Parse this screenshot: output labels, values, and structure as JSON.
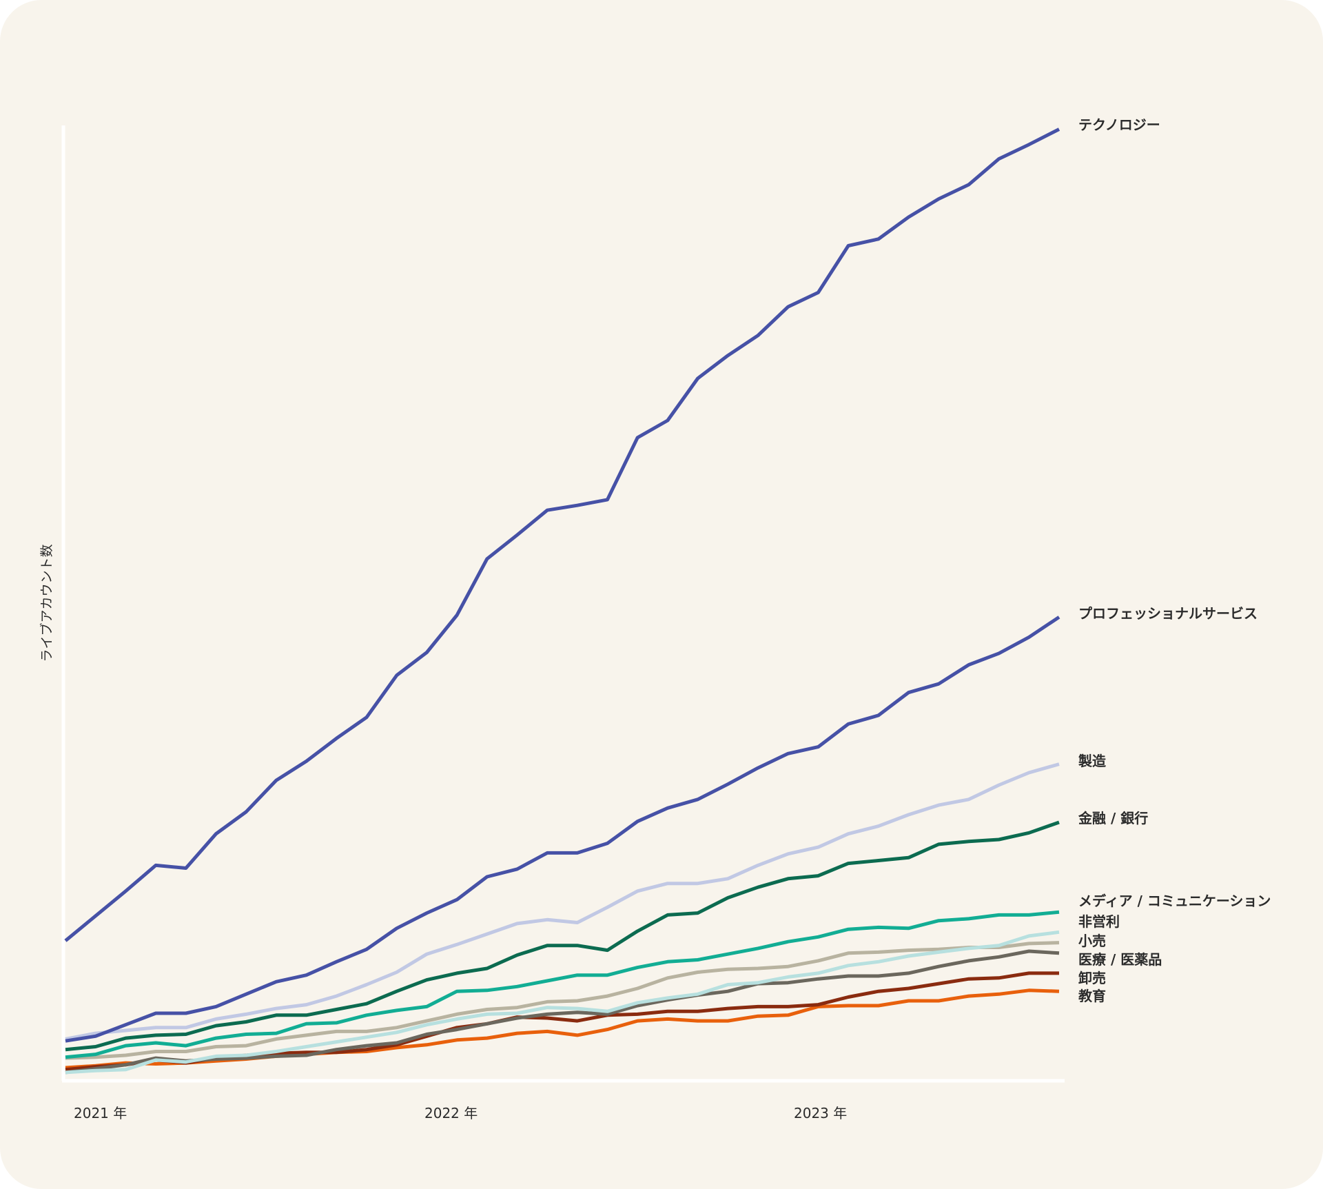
{
  "chart_data": {
    "type": "line",
    "title": "",
    "xlabel": "",
    "ylabel": "ライブアカウント数",
    "x_start": "2021-01",
    "x_frequency": "monthly",
    "x_ticks": [
      "2021 年",
      "2022 年",
      "2023 年"
    ],
    "y_scale_note": "relative (no y tick labels shown)",
    "ylim": [
      0,
      100
    ],
    "grid": false,
    "legend": "direct labels at line ends (right)",
    "series": [
      {
        "name": "テクノロジー",
        "color": "#4651a6",
        "values": [
          14.6,
          17.2,
          19.8,
          22.5,
          22.2,
          25.8,
          28.1,
          31.4,
          33.4,
          35.8,
          38.0,
          42.4,
          44.8,
          48.7,
          54.6,
          57.1,
          59.7,
          60.2,
          60.8,
          67.3,
          69.1,
          73.5,
          75.9,
          78.0,
          81.0,
          82.5,
          87.4,
          88.1,
          90.4,
          92.3,
          93.8,
          96.5,
          98.0,
          99.6
        ]
      },
      {
        "name": "プロフェッショナルサービス",
        "color": "#4651a6",
        "values": [
          4.1,
          4.6,
          5.8,
          7.0,
          7.0,
          7.7,
          9.0,
          10.3,
          11.0,
          12.4,
          13.7,
          15.9,
          17.5,
          18.9,
          21.3,
          22.1,
          23.8,
          23.8,
          24.8,
          27.1,
          28.5,
          29.4,
          31.0,
          32.7,
          34.2,
          34.9,
          37.3,
          38.2,
          40.6,
          41.5,
          43.5,
          44.7,
          46.4,
          48.5
        ]
      },
      {
        "name": "製造",
        "color": "#c1c8e4",
        "values": [
          4.3,
          4.9,
          5.2,
          5.5,
          5.5,
          6.4,
          6.9,
          7.5,
          7.9,
          8.8,
          10.0,
          11.3,
          13.2,
          14.2,
          15.3,
          16.4,
          16.8,
          16.5,
          18.1,
          19.8,
          20.6,
          20.6,
          21.1,
          22.5,
          23.7,
          24.4,
          25.8,
          26.6,
          27.8,
          28.8,
          29.4,
          30.9,
          32.2,
          33.1
        ]
      },
      {
        "name": "金融 / 銀行",
        "color": "#0c6b50",
        "values": [
          3.2,
          3.5,
          4.4,
          4.7,
          4.8,
          5.7,
          6.1,
          6.8,
          6.8,
          7.4,
          8.0,
          9.3,
          10.5,
          11.2,
          11.7,
          13.1,
          14.1,
          14.1,
          13.6,
          15.6,
          17.3,
          17.5,
          19.1,
          20.2,
          21.1,
          21.4,
          22.7,
          23.0,
          23.3,
          24.7,
          25.0,
          25.2,
          25.9,
          27.0
        ]
      },
      {
        "name": "メディア / コミュニケーション",
        "color": "#12ad94",
        "values": [
          2.4,
          2.7,
          3.6,
          3.9,
          3.6,
          4.4,
          4.8,
          4.9,
          5.9,
          6.0,
          6.8,
          7.3,
          7.7,
          9.3,
          9.4,
          9.8,
          10.4,
          11.0,
          11.0,
          11.8,
          12.4,
          12.6,
          13.2,
          13.8,
          14.5,
          15.0,
          15.8,
          16.0,
          15.9,
          16.7,
          16.9,
          17.3,
          17.3,
          17.6
        ]
      },
      {
        "name": "非営利",
        "color": "#b7e0df",
        "values": [
          0.8,
          1.0,
          1.1,
          2.1,
          1.9,
          2.5,
          2.6,
          3.0,
          3.5,
          4.0,
          4.5,
          5.0,
          5.8,
          6.4,
          6.9,
          7.0,
          7.6,
          7.5,
          7.2,
          8.1,
          8.6,
          9.0,
          10.0,
          10.2,
          10.8,
          11.2,
          12.0,
          12.4,
          13.0,
          13.4,
          13.8,
          14.1,
          15.1,
          15.5
        ]
      },
      {
        "name": "小売",
        "color": "#b8b3a0",
        "values": [
          2.3,
          2.4,
          2.6,
          3.0,
          3.0,
          3.5,
          3.6,
          4.3,
          4.7,
          5.1,
          5.1,
          5.5,
          6.2,
          6.9,
          7.4,
          7.6,
          8.2,
          8.3,
          8.8,
          9.6,
          10.7,
          11.3,
          11.6,
          11.7,
          11.9,
          12.5,
          13.3,
          13.4,
          13.6,
          13.7,
          13.9,
          13.9,
          14.3,
          14.4
        ]
      },
      {
        "name": "医療 / 医薬品",
        "color": "#6b675d",
        "values": [
          0.8,
          1.2,
          1.6,
          2.3,
          2.0,
          2.2,
          2.3,
          2.5,
          2.6,
          3.2,
          3.6,
          3.9,
          4.8,
          5.3,
          5.9,
          6.5,
          6.9,
          7.1,
          6.9,
          7.8,
          8.4,
          8.9,
          9.3,
          10.1,
          10.2,
          10.6,
          10.9,
          10.9,
          11.2,
          11.9,
          12.5,
          12.9,
          13.5,
          13.3
        ]
      },
      {
        "name": "卸売",
        "color": "#8a2b0f",
        "values": [
          1.1,
          1.4,
          1.6,
          2.1,
          1.8,
          2.3,
          2.6,
          2.8,
          2.9,
          2.9,
          3.2,
          3.7,
          4.6,
          5.5,
          5.9,
          6.6,
          6.5,
          6.2,
          6.8,
          6.9,
          7.2,
          7.2,
          7.5,
          7.7,
          7.7,
          7.9,
          8.7,
          9.3,
          9.6,
          10.1,
          10.6,
          10.7,
          11.2,
          11.2
        ]
      },
      {
        "name": "教育",
        "color": "#e8600c",
        "values": [
          1.3,
          1.5,
          1.8,
          1.7,
          1.8,
          2.0,
          2.2,
          2.5,
          2.7,
          2.9,
          3.0,
          3.4,
          3.7,
          4.2,
          4.4,
          4.9,
          5.1,
          4.7,
          5.3,
          6.2,
          6.4,
          6.2,
          6.2,
          6.7,
          6.8,
          7.7,
          7.8,
          7.8,
          8.3,
          8.3,
          8.8,
          9.0,
          9.4,
          9.3
        ]
      }
    ]
  },
  "colors": {
    "background": "#f8f4ec",
    "axis": "#ffffff",
    "text": "#2b2b2b"
  }
}
